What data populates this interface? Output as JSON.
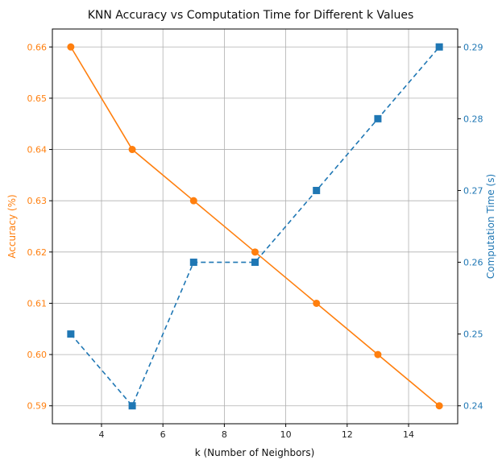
{
  "chart_data": {
    "type": "line",
    "title": "KNN Accuracy vs Computation Time for Different k Values",
    "xlabel": "k (Number of Neighbors)",
    "ylabel_left": "Accuracy (%)",
    "ylabel_right": "Computation Time (s)",
    "xlim": [
      2.4,
      15.6
    ],
    "ylim_left": [
      0.5865,
      0.6635
    ],
    "ylim_right": [
      0.2375,
      0.2925
    ],
    "x_ticks": [
      4,
      6,
      8,
      10,
      12,
      14
    ],
    "x_tick_labels": [
      "4",
      "6",
      "8",
      "10",
      "12",
      "14"
    ],
    "y_left_ticks": [
      0.59,
      0.6,
      0.61,
      0.62,
      0.63,
      0.64,
      0.65,
      0.66
    ],
    "y_left_tick_labels": [
      "0.59",
      "0.60",
      "0.61",
      "0.62",
      "0.63",
      "0.64",
      "0.65",
      "0.66"
    ],
    "y_right_ticks": [
      0.24,
      0.25,
      0.26,
      0.27,
      0.28,
      0.29
    ],
    "y_right_tick_labels": [
      "0.24",
      "0.25",
      "0.26",
      "0.27",
      "0.28",
      "0.29"
    ],
    "grid": true,
    "x": [
      3,
      5,
      7,
      9,
      11,
      13,
      15
    ],
    "series": [
      {
        "axis": "left",
        "values": [
          0.66,
          0.64,
          0.63,
          0.62,
          0.61,
          0.6,
          0.59
        ],
        "color": "#ff7f0e",
        "marker": "circle",
        "linestyle": "solid"
      },
      {
        "axis": "right",
        "values": [
          0.25,
          0.24,
          0.26,
          0.26,
          0.27,
          0.28,
          0.29
        ],
        "color": "#1f77b4",
        "marker": "square",
        "linestyle": "dashed"
      }
    ]
  }
}
